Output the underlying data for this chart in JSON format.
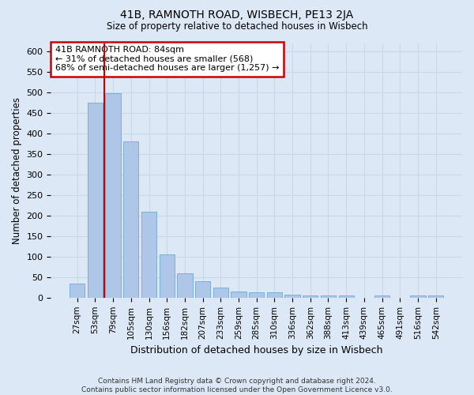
{
  "title": "41B, RAMNOTH ROAD, WISBECH, PE13 2JA",
  "subtitle": "Size of property relative to detached houses in Wisbech",
  "xlabel": "Distribution of detached houses by size in Wisbech",
  "ylabel": "Number of detached properties",
  "footer_line1": "Contains HM Land Registry data © Crown copyright and database right 2024.",
  "footer_line2": "Contains public sector information licensed under the Open Government Licence v3.0.",
  "categories": [
    "27sqm",
    "53sqm",
    "79sqm",
    "105sqm",
    "130sqm",
    "156sqm",
    "182sqm",
    "207sqm",
    "233sqm",
    "259sqm",
    "285sqm",
    "310sqm",
    "336sqm",
    "362sqm",
    "388sqm",
    "413sqm",
    "439sqm",
    "465sqm",
    "491sqm",
    "516sqm",
    "542sqm"
  ],
  "values": [
    35,
    475,
    498,
    382,
    210,
    105,
    60,
    40,
    24,
    15,
    13,
    13,
    8,
    5,
    5,
    5,
    0,
    5,
    0,
    5,
    5
  ],
  "bar_color": "#aec6e8",
  "bar_edge_color": "#7bafd4",
  "grid_color": "#c8d8e8",
  "background_color": "#dce8f5",
  "red_line_x": 1.5,
  "annotation_text": "41B RAMNOTH ROAD: 84sqm\n← 31% of detached houses are smaller (568)\n68% of semi-detached houses are larger (1,257) →",
  "annotation_box_color": "#ffffff",
  "annotation_border_color": "#cc0000",
  "ylim": [
    0,
    620
  ],
  "yticks": [
    0,
    50,
    100,
    150,
    200,
    250,
    300,
    350,
    400,
    450,
    500,
    550,
    600
  ]
}
